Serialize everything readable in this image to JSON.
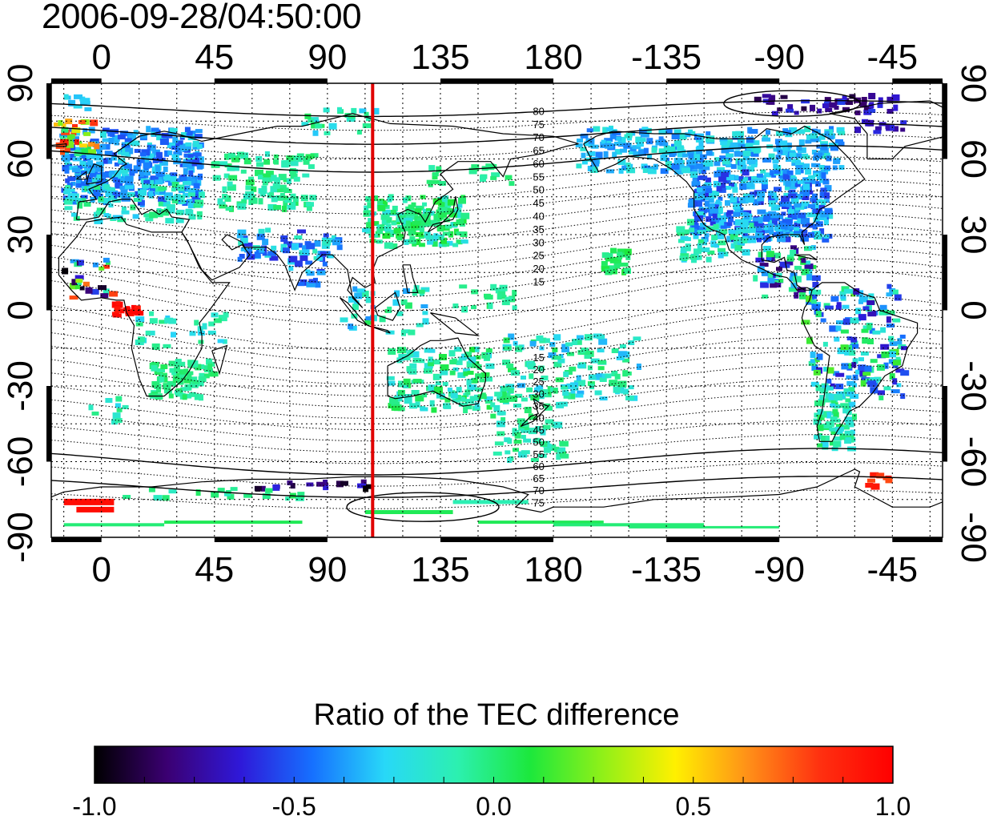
{
  "title": "2006-09-28/04:50:00",
  "map": {
    "x_ticks": [
      "0",
      "45",
      "90",
      "135",
      "180",
      "-135",
      "-90",
      "-45"
    ],
    "y_ticks": [
      "90",
      "60",
      "30",
      "0",
      "-30",
      "-60",
      "-90"
    ],
    "lon_range": [
      -20,
      335
    ],
    "lat_range": [
      -90,
      90
    ],
    "grid_lines": true,
    "marker_line_longitude": 108,
    "marker_line_color": "#e00000",
    "contour_labels_north": [
      "80",
      "75",
      "70",
      "65",
      "60",
      "55",
      "50",
      "45",
      "40",
      "35",
      "30",
      "25",
      "20",
      "15"
    ],
    "contour_labels_south": [
      "15",
      "20",
      "25",
      "30",
      "35",
      "40",
      "45",
      "50",
      "55",
      "60",
      "65",
      "70",
      "75"
    ]
  },
  "colorbar": {
    "title": "Ratio of the TEC difference",
    "ticks": [
      "-1.0",
      "-0.5",
      "0.0",
      "0.5",
      "1.0"
    ],
    "range": [
      -1.0,
      1.0
    ],
    "stops": [
      "#000000",
      "#3b0072",
      "#2f18d8",
      "#1670ff",
      "#28d8f8",
      "#2cf0b0",
      "#1ce83c",
      "#90f018",
      "#fff000",
      "#ff9018",
      "#ff3010",
      "#ff0000"
    ]
  }
}
